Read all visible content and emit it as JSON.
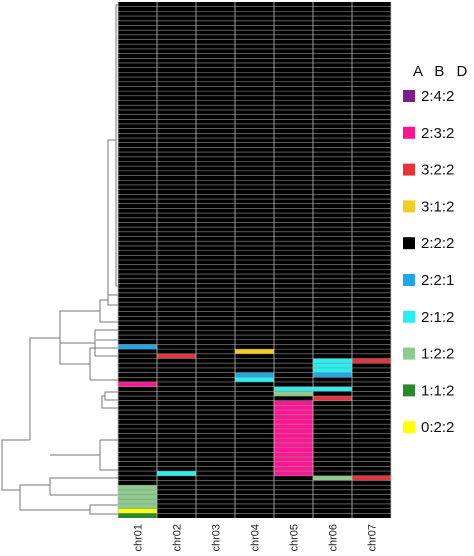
{
  "chart_data": {
    "type": "heatmap",
    "title": "",
    "xlabel": "",
    "ylabel": "",
    "columns": [
      "chr01",
      "chr02",
      "chr03",
      "chr04",
      "chr05",
      "chr06",
      "chr07"
    ],
    "row_count": 110,
    "default_category": "2:2:2",
    "legend": {
      "header": "A B D",
      "placement": "right",
      "categories": [
        {
          "label": "2:4:2",
          "color": "#7b1f8c"
        },
        {
          "label": "2:3:2",
          "color": "#ff1493"
        },
        {
          "label": "3:2:2",
          "color": "#e8333a"
        },
        {
          "label": "3:1:2",
          "color": "#f5cc22"
        },
        {
          "label": "2:2:2",
          "color": "#000000"
        },
        {
          "label": "2:2:1",
          "color": "#1fa8e8"
        },
        {
          "label": "2:1:2",
          "color": "#27f0ee"
        },
        {
          "label": "1:2:2",
          "color": "#8ccc8c"
        },
        {
          "label": "1:1:2",
          "color": "#2a8a2a"
        },
        {
          "label": "0:2:2",
          "color": "#ffff00"
        }
      ]
    },
    "cells": [
      {
        "column": "chr01",
        "row_start": 73,
        "row_end": 73,
        "category": "2:2:1"
      },
      {
        "column": "chr01",
        "row_start": 81,
        "row_end": 81,
        "category": "2:3:2"
      },
      {
        "column": "chr01",
        "row_start": 103,
        "row_end": 109,
        "category": "1:2:2"
      },
      {
        "column": "chr01",
        "row_start": 108,
        "row_end": 108,
        "category": "0:2:2"
      },
      {
        "column": "chr01",
        "row_start": 109,
        "row_end": 109,
        "category": "1:1:2"
      },
      {
        "column": "chr02",
        "row_start": 75,
        "row_end": 75,
        "category": "3:2:2"
      },
      {
        "column": "chr02",
        "row_start": 100,
        "row_end": 100,
        "category": "2:1:2"
      },
      {
        "column": "chr04",
        "row_start": 74,
        "row_end": 74,
        "category": "3:1:2"
      },
      {
        "column": "chr04",
        "row_start": 79,
        "row_end": 79,
        "category": "2:2:1"
      },
      {
        "column": "chr04",
        "row_start": 80,
        "row_end": 80,
        "category": "2:1:2"
      },
      {
        "column": "chr05",
        "row_start": 82,
        "row_end": 82,
        "category": "2:1:2"
      },
      {
        "column": "chr05",
        "row_start": 83,
        "row_end": 83,
        "category": "1:2:2"
      },
      {
        "column": "chr05",
        "row_start": 85,
        "row_end": 100,
        "category": "2:3:2"
      },
      {
        "column": "chr06",
        "row_start": 76,
        "row_end": 79,
        "category": "2:1:2"
      },
      {
        "column": "chr06",
        "row_start": 79,
        "row_end": 79,
        "category": "2:2:1"
      },
      {
        "column": "chr06",
        "row_start": 82,
        "row_end": 82,
        "category": "2:1:2"
      },
      {
        "column": "chr06",
        "row_start": 84,
        "row_end": 84,
        "category": "3:2:2"
      },
      {
        "column": "chr06",
        "row_start": 101,
        "row_end": 101,
        "category": "1:2:2"
      },
      {
        "column": "chr07",
        "row_start": 76,
        "row_end": 76,
        "category": "3:2:2"
      },
      {
        "column": "chr07",
        "row_start": 101,
        "row_end": 101,
        "category": "3:2:2"
      }
    ]
  }
}
